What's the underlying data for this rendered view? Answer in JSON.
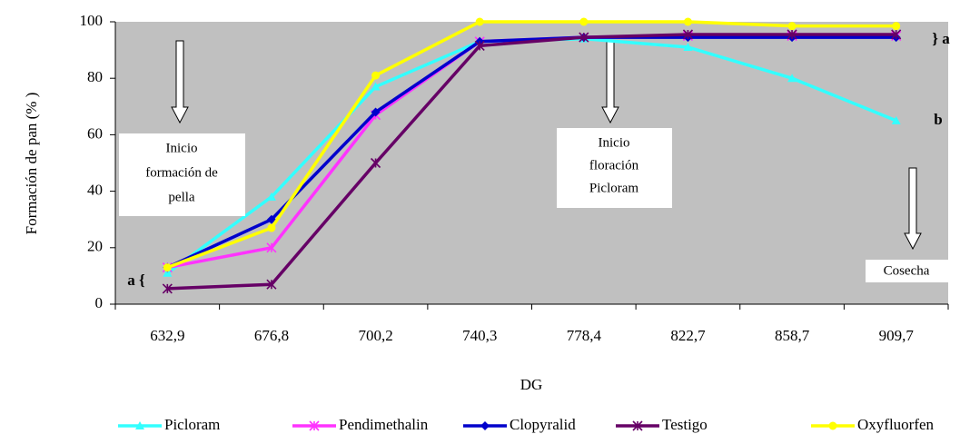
{
  "chart_data": {
    "type": "line",
    "y_label": "Formación de pan (% )",
    "x_label": "DG",
    "categories": [
      "632,9",
      "676,8",
      "700,2",
      "740,3",
      "778,4",
      "822,7",
      "858,7",
      "909,7"
    ],
    "series": [
      {
        "name": "Picloram",
        "color": "#33ffff",
        "marker": "triangle",
        "values": [
          11,
          38,
          77,
          93,
          94,
          91,
          80,
          65
        ]
      },
      {
        "name": "Pendimethalin",
        "color": "#ff33ff",
        "marker": "star",
        "values": [
          13,
          20,
          67,
          93,
          94.5,
          95,
          95,
          95
        ]
      },
      {
        "name": "Clopyralid",
        "color": "#0000cc",
        "marker": "diamond",
        "values": [
          13,
          30,
          68,
          93,
          94.5,
          94.5,
          94.5,
          94.5
        ]
      },
      {
        "name": "Testigo",
        "color": "#660066",
        "marker": "star",
        "values": [
          5.5,
          7,
          50,
          91.5,
          94.5,
          95.5,
          95.5,
          95.5
        ]
      },
      {
        "name": "Oxyfluorfen",
        "color": "#ffff00",
        "marker": "circle",
        "values": [
          13,
          27,
          81,
          100,
          100,
          100,
          98.5,
          98.5
        ]
      }
    ],
    "ylim": [
      0,
      100
    ],
    "yticks": [
      0,
      20,
      40,
      60,
      80,
      100
    ],
    "legend": "bottom",
    "annotations": [
      {
        "lines": [
          "Inicio",
          "formación de",
          "pella"
        ]
      },
      {
        "lines": [
          "Inicio",
          "floración",
          "Picloram"
        ]
      },
      {
        "lines": [
          "Cosecha"
        ]
      },
      {
        "lines": [
          "} a"
        ]
      },
      {
        "lines": [
          "b"
        ]
      },
      {
        "lines": [
          "a {"
        ]
      }
    ]
  }
}
